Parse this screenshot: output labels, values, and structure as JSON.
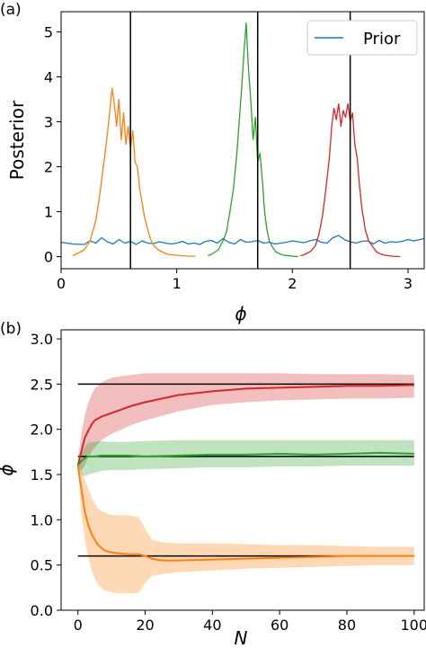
{
  "chart_data": [
    {
      "type": "line",
      "panel_label": "(a)",
      "xlabel": "ϕ",
      "ylabel": "Posterior",
      "xlim": [
        0,
        3.14
      ],
      "ylim": [
        -0.27,
        5.45
      ],
      "xticks": [
        0,
        1,
        2,
        3
      ],
      "xtick_labels": [
        "0",
        "1",
        "2",
        "3"
      ],
      "yticks": [
        0,
        1,
        2,
        3,
        4,
        5
      ],
      "ytick_labels": [
        "0",
        "1",
        "2",
        "3",
        "4",
        "5"
      ],
      "legend": {
        "position": "top-right",
        "entries": [
          "Prior"
        ]
      },
      "vlines": [
        0.6,
        1.7,
        2.5
      ],
      "series": [
        {
          "name": "Prior",
          "color": "#1f77b4",
          "x": [
            0,
            0.1,
            0.2,
            0.25,
            0.3,
            0.35,
            0.4,
            0.45,
            0.5,
            0.55,
            0.6,
            0.65,
            0.7,
            0.75,
            0.8,
            0.85,
            0.9,
            0.95,
            1.0,
            1.05,
            1.1,
            1.15,
            1.2,
            1.25,
            1.3,
            1.35,
            1.4,
            1.45,
            1.5,
            1.55,
            1.6,
            1.65,
            1.7,
            1.75,
            1.8,
            1.85,
            1.9,
            1.95,
            2.0,
            2.05,
            2.1,
            2.15,
            2.2,
            2.25,
            2.3,
            2.35,
            2.4,
            2.45,
            2.5,
            2.55,
            2.6,
            2.65,
            2.7,
            2.75,
            2.8,
            2.85,
            2.9,
            2.95,
            3.0,
            3.05,
            3.14
          ],
          "y": [
            0.32,
            0.28,
            0.27,
            0.35,
            0.3,
            0.42,
            0.33,
            0.28,
            0.38,
            0.3,
            0.34,
            0.27,
            0.35,
            0.3,
            0.29,
            0.33,
            0.3,
            0.28,
            0.3,
            0.34,
            0.28,
            0.3,
            0.27,
            0.34,
            0.36,
            0.3,
            0.4,
            0.32,
            0.28,
            0.38,
            0.32,
            0.33,
            0.36,
            0.3,
            0.32,
            0.28,
            0.3,
            0.32,
            0.35,
            0.33,
            0.31,
            0.35,
            0.38,
            0.32,
            0.3,
            0.42,
            0.47,
            0.38,
            0.33,
            0.3,
            0.34,
            0.35,
            0.28,
            0.36,
            0.3,
            0.33,
            0.32,
            0.34,
            0.38,
            0.35,
            0.4
          ]
        },
        {
          "name": "",
          "color": "#ff7f0e",
          "x": [
            0.1,
            0.15,
            0.2,
            0.25,
            0.3,
            0.33,
            0.36,
            0.39,
            0.42,
            0.44,
            0.46,
            0.48,
            0.5,
            0.52,
            0.54,
            0.56,
            0.58,
            0.6,
            0.62,
            0.64,
            0.66,
            0.68,
            0.7,
            0.72,
            0.74,
            0.76,
            0.78,
            0.8,
            0.84,
            0.88,
            0.92,
            1.0,
            1.1,
            1.16
          ],
          "y": [
            0.02,
            0.08,
            0.15,
            0.35,
            0.8,
            1.3,
            1.9,
            2.5,
            3.2,
            3.75,
            3.4,
            2.9,
            3.5,
            2.6,
            3.2,
            2.5,
            2.9,
            2.4,
            2.8,
            2.1,
            2.0,
            1.5,
            1.2,
            0.9,
            0.7,
            0.5,
            0.35,
            0.25,
            0.15,
            0.1,
            0.05,
            0.03,
            0.01,
            0.01
          ]
        },
        {
          "name": "",
          "color": "#2ca02c",
          "x": [
            1.27,
            1.3,
            1.33,
            1.36,
            1.4,
            1.43,
            1.46,
            1.49,
            1.52,
            1.54,
            1.56,
            1.58,
            1.6,
            1.62,
            1.64,
            1.66,
            1.68,
            1.7,
            1.72,
            1.74,
            1.76,
            1.78,
            1.8,
            1.83,
            1.86,
            1.9,
            1.93,
            1.96,
            2.0,
            2.05
          ],
          "y": [
            0.02,
            0.05,
            0.1,
            0.15,
            0.35,
            0.55,
            1.0,
            1.5,
            2.3,
            3.0,
            3.7,
            4.5,
            5.2,
            4.2,
            3.5,
            2.6,
            3.1,
            2.1,
            2.3,
            1.7,
            1.0,
            0.6,
            0.35,
            0.2,
            0.1,
            0.05,
            0.03,
            0.02,
            0.01,
            0.0
          ]
        },
        {
          "name": "",
          "color": "#d62728",
          "x": [
            2.07,
            2.1,
            2.13,
            2.16,
            2.2,
            2.23,
            2.26,
            2.29,
            2.32,
            2.34,
            2.36,
            2.38,
            2.4,
            2.42,
            2.44,
            2.46,
            2.48,
            2.5,
            2.52,
            2.54,
            2.56,
            2.58,
            2.6,
            2.63,
            2.66,
            2.7,
            2.73,
            2.76,
            2.8,
            2.86,
            2.93
          ],
          "y": [
            0.02,
            0.04,
            0.08,
            0.12,
            0.25,
            0.5,
            0.9,
            1.5,
            2.2,
            2.9,
            3.3,
            3.05,
            3.4,
            2.9,
            3.25,
            3.1,
            3.4,
            3.0,
            3.2,
            2.5,
            2.2,
            1.6,
            1.1,
            0.6,
            0.35,
            0.2,
            0.1,
            0.06,
            0.03,
            0.01,
            0.0
          ]
        }
      ]
    },
    {
      "type": "line",
      "panel_label": "(b)",
      "xlabel": "N",
      "ylabel": "ϕ",
      "xlim": [
        -5,
        103
      ],
      "ylim": [
        0,
        3.1
      ],
      "xticks": [
        0,
        20,
        40,
        60,
        80,
        100
      ],
      "xtick_labels": [
        "0",
        "20",
        "40",
        "60",
        "80",
        "100"
      ],
      "yticks": [
        0.0,
        0.5,
        1.0,
        1.5,
        2.0,
        2.5,
        3.0
      ],
      "ytick_labels": [
        "0.0",
        "0.5",
        "1.0",
        "1.5",
        "2.0",
        "2.5",
        "3.0"
      ],
      "hlines": [
        {
          "y": 2.5,
          "x": [
            0,
            100
          ]
        },
        {
          "y": 1.7,
          "x": [
            0,
            100
          ]
        },
        {
          "y": 0.6,
          "x": [
            0,
            100
          ]
        }
      ],
      "series": [
        {
          "name": "",
          "color": "#d62728",
          "x": [
            0,
            1,
            2,
            3,
            4,
            5,
            7,
            10,
            13,
            16,
            20,
            25,
            30,
            40,
            50,
            60,
            70,
            80,
            90,
            100
          ],
          "y": [
            1.6,
            1.75,
            1.9,
            1.98,
            2.05,
            2.1,
            2.14,
            2.18,
            2.22,
            2.26,
            2.3,
            2.34,
            2.38,
            2.42,
            2.45,
            2.46,
            2.47,
            2.48,
            2.48,
            2.49
          ],
          "upper": [
            1.62,
            1.95,
            2.15,
            2.28,
            2.38,
            2.45,
            2.52,
            2.57,
            2.59,
            2.6,
            2.62,
            2.62,
            2.62,
            2.62,
            2.62,
            2.62,
            2.61,
            2.61,
            2.61,
            2.6
          ],
          "lower": [
            1.58,
            1.55,
            1.6,
            1.68,
            1.75,
            1.8,
            1.88,
            1.95,
            2.0,
            2.05,
            2.1,
            2.15,
            2.2,
            2.27,
            2.3,
            2.32,
            2.33,
            2.34,
            2.34,
            2.35
          ]
        },
        {
          "name": "",
          "color": "#2ca02c",
          "x": [
            0,
            1,
            2,
            3,
            5,
            7,
            10,
            15,
            20,
            30,
            40,
            50,
            60,
            70,
            80,
            90,
            100
          ],
          "y": [
            1.6,
            1.65,
            1.68,
            1.7,
            1.7,
            1.71,
            1.71,
            1.71,
            1.7,
            1.71,
            1.72,
            1.72,
            1.73,
            1.72,
            1.73,
            1.74,
            1.73
          ],
          "upper": [
            1.62,
            1.72,
            1.8,
            1.85,
            1.86,
            1.87,
            1.86,
            1.86,
            1.87,
            1.88,
            1.88,
            1.88,
            1.88,
            1.88,
            1.88,
            1.88,
            1.88
          ],
          "lower": [
            1.58,
            1.5,
            1.48,
            1.5,
            1.52,
            1.54,
            1.55,
            1.55,
            1.56,
            1.57,
            1.58,
            1.58,
            1.59,
            1.59,
            1.6,
            1.6,
            1.6
          ]
        },
        {
          "name": "",
          "color": "#ff7f0e",
          "x": [
            0,
            1,
            2,
            3,
            4,
            5,
            6,
            8,
            10,
            12,
            15,
            18,
            20,
            22,
            25,
            30,
            40,
            50,
            60,
            70,
            80,
            90,
            100
          ],
          "y": [
            1.6,
            1.35,
            1.1,
            0.95,
            0.85,
            0.78,
            0.72,
            0.66,
            0.64,
            0.63,
            0.62,
            0.62,
            0.6,
            0.57,
            0.55,
            0.55,
            0.56,
            0.57,
            0.58,
            0.59,
            0.6,
            0.6,
            0.6
          ],
          "upper": [
            1.62,
            1.55,
            1.45,
            1.35,
            1.25,
            1.18,
            1.12,
            1.08,
            1.05,
            1.05,
            1.05,
            1.03,
            0.9,
            0.78,
            0.75,
            0.74,
            0.74,
            0.73,
            0.72,
            0.72,
            0.71,
            0.7,
            0.7
          ],
          "lower": [
            1.58,
            1.1,
            0.8,
            0.6,
            0.45,
            0.35,
            0.28,
            0.22,
            0.2,
            0.19,
            0.19,
            0.19,
            0.3,
            0.38,
            0.4,
            0.42,
            0.44,
            0.46,
            0.47,
            0.48,
            0.49,
            0.5,
            0.5
          ]
        }
      ]
    }
  ]
}
